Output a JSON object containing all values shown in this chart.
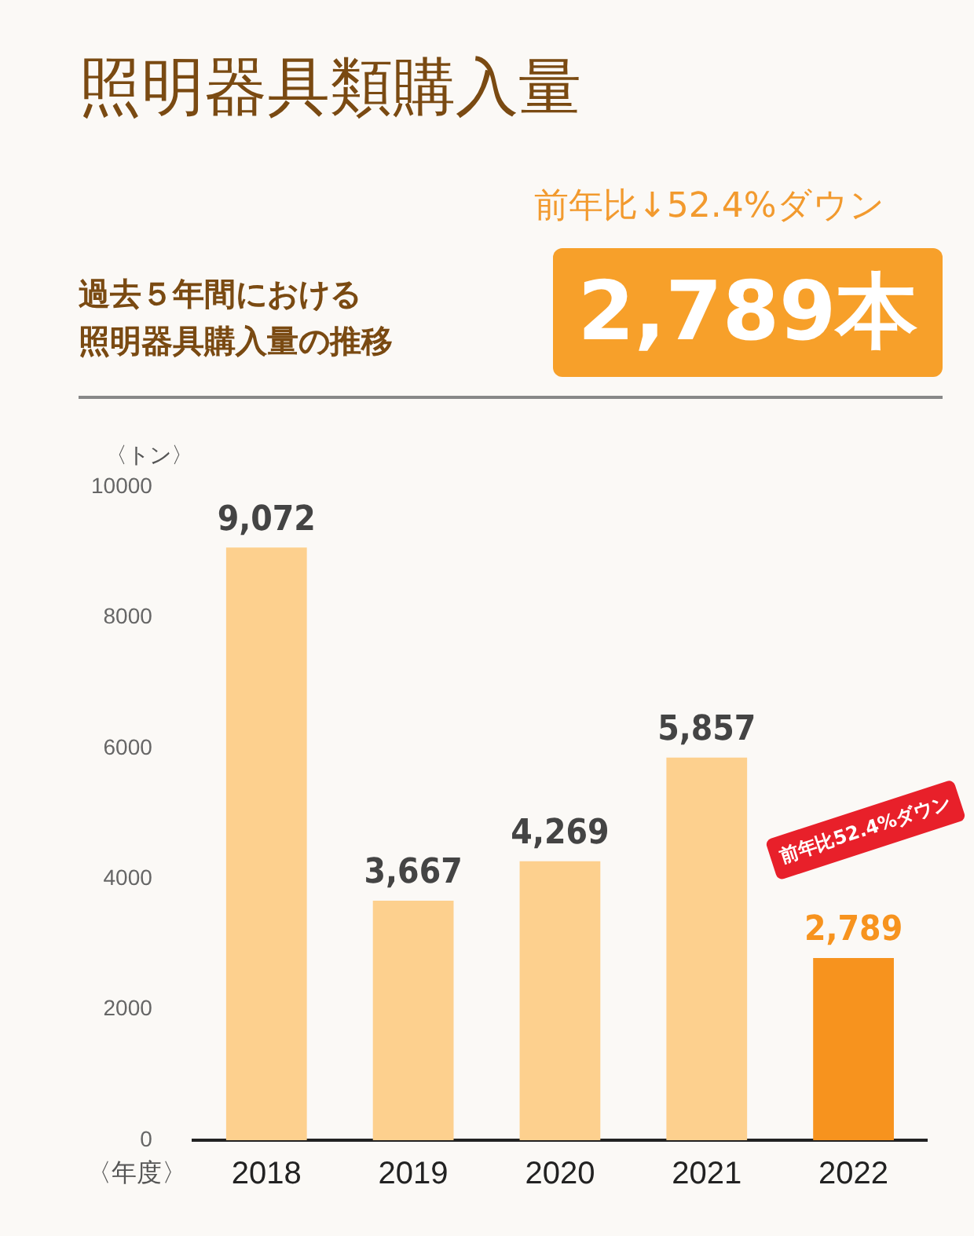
{
  "chart_data": {
    "type": "bar",
    "title": "照明器具類購入量",
    "subtitle": "過去５年間における照明器具購入量の推移",
    "xlabel": "〈年度〉",
    "ylabel": "〈トン〉",
    "categories": [
      "2018",
      "2019",
      "2020",
      "2021",
      "2022"
    ],
    "values": [
      9072,
      3667,
      4269,
      5857,
      2789
    ],
    "colors": [
      "#fdd08e",
      "#fdd08e",
      "#fdd08e",
      "#fdd08e",
      "#f7931e"
    ],
    "ylim": [
      0,
      10000
    ],
    "yticks": [
      0,
      2000,
      4000,
      6000,
      8000,
      10000
    ],
    "grid": false,
    "value_labels": [
      "9,072",
      "3,667",
      "4,269",
      "5,857",
      "2,789"
    ],
    "annotations": [
      "前年比↓52.4%ダウン",
      "2,789本",
      "前年比52.4%ダウン"
    ]
  }
}
